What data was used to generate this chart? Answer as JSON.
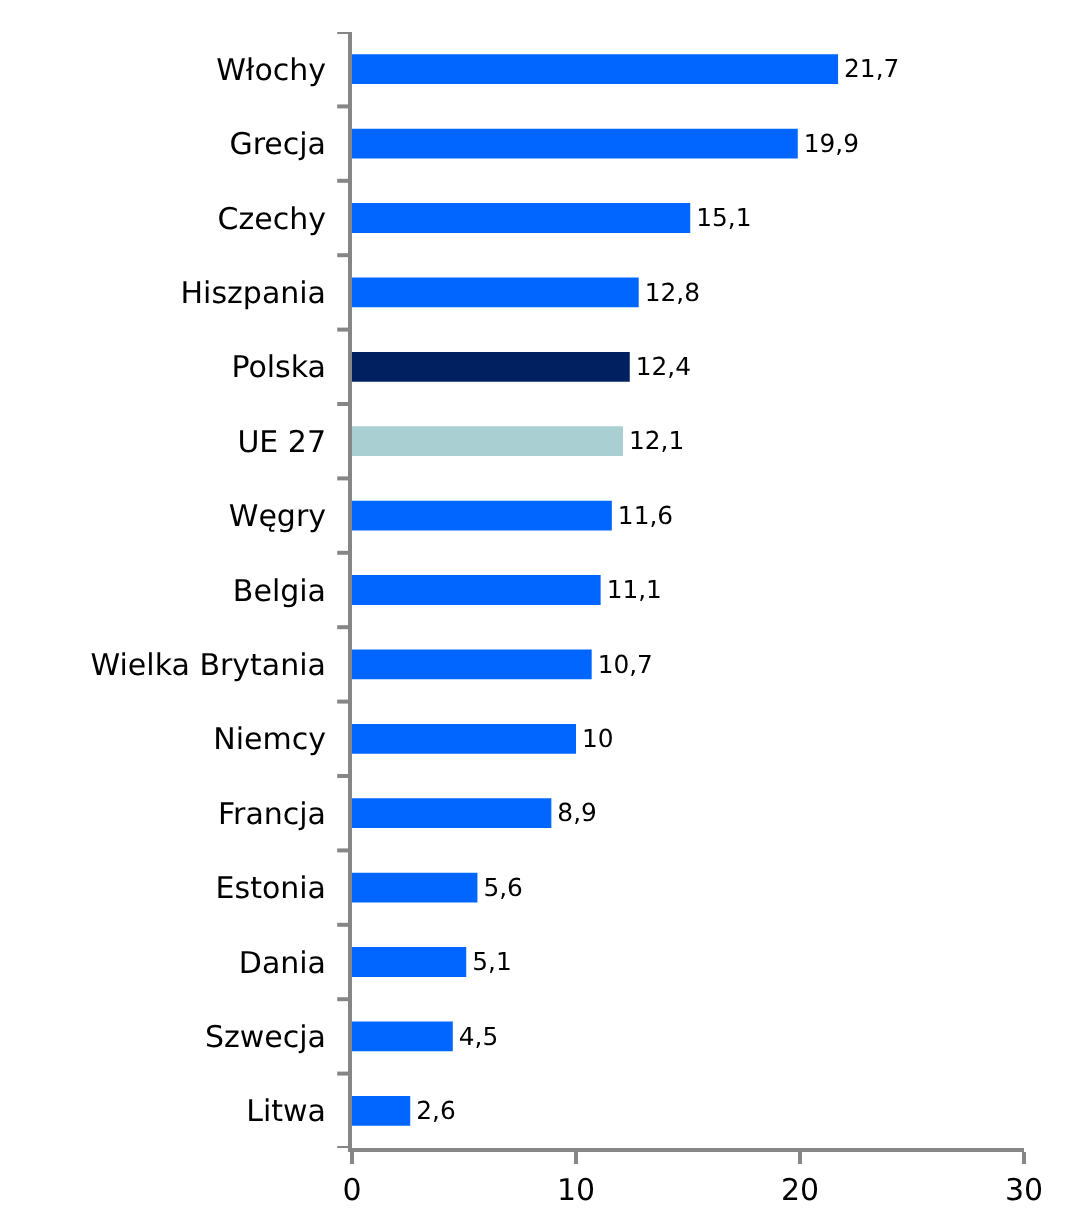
{
  "chart_data": {
    "type": "bar",
    "orientation": "horizontal",
    "categories": [
      "Włochy",
      "Grecja",
      "Czechy",
      "Hiszpania",
      "Polska",
      "UE 27",
      "Węgry",
      "Belgia",
      "Wielka Brytania",
      "Niemcy",
      "Francja",
      "Estonia",
      "Dania",
      "Szwecja",
      "Litwa"
    ],
    "values": [
      21.7,
      19.9,
      15.1,
      12.8,
      12.4,
      12.1,
      11.6,
      11.1,
      10.7,
      10,
      8.9,
      5.6,
      5.1,
      4.5,
      2.6
    ],
    "value_labels": [
      "21,7",
      "19,9",
      "15,1",
      "12,8",
      "12,4",
      "12,1",
      "11,6",
      "11,1",
      "10,7",
      "10",
      "8,9",
      "5,6",
      "5,1",
      "4,5",
      "2,6"
    ],
    "colors": [
      "#0066ff",
      "#0066ff",
      "#0066ff",
      "#0066ff",
      "#002060",
      "#aacfd3",
      "#0066ff",
      "#0066ff",
      "#0066ff",
      "#0066ff",
      "#0066ff",
      "#0066ff",
      "#0066ff",
      "#0066ff",
      "#0066ff"
    ],
    "xlim": [
      0,
      30
    ],
    "xticks": [
      0,
      10,
      20,
      30
    ]
  }
}
